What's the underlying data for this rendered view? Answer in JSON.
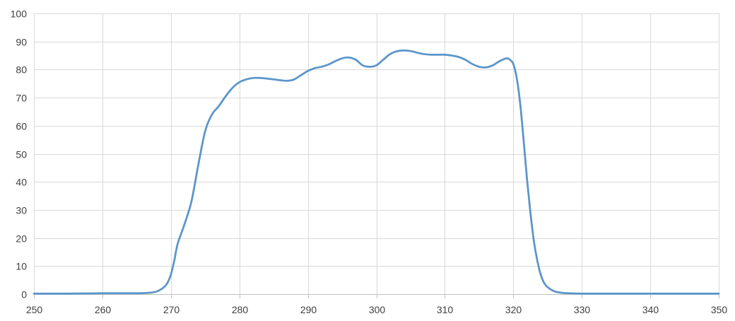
{
  "chart_data": {
    "type": "line",
    "title": "",
    "xlabel": "",
    "ylabel": "",
    "xlim": [
      250,
      350
    ],
    "ylim": [
      0,
      100
    ],
    "x_ticks": [
      250,
      260,
      270,
      280,
      290,
      300,
      310,
      320,
      330,
      340,
      350
    ],
    "y_ticks": [
      0,
      10,
      20,
      30,
      40,
      50,
      60,
      70,
      80,
      90,
      100
    ],
    "grid": true,
    "legend": "none",
    "series": [
      {
        "color": "#5b95c9",
        "x": [
          250,
          255,
          260,
          265,
          267,
          268,
          269,
          269.5,
          270,
          270.5,
          271,
          272,
          273,
          274,
          275,
          276,
          277,
          278,
          279,
          280,
          281,
          282,
          283,
          284,
          285,
          286,
          287,
          288,
          289,
          290,
          291,
          292,
          293,
          294,
          295,
          296,
          297,
          298,
          299,
          300,
          301,
          302,
          303,
          304,
          305,
          306,
          307,
          308,
          309,
          310,
          311,
          312,
          313,
          314,
          315,
          316,
          317,
          318,
          319,
          319.5,
          320,
          320.5,
          321,
          321.5,
          322,
          322.5,
          323,
          323.5,
          324,
          324.5,
          325,
          326,
          327,
          328,
          330,
          335,
          340,
          345,
          350
        ],
        "y": [
          0.2,
          0.2,
          0.3,
          0.3,
          0.5,
          1.0,
          2.5,
          4.0,
          7.0,
          12.0,
          18.0,
          25.0,
          33.0,
          46.0,
          58.0,
          64.0,
          67.0,
          70.5,
          73.5,
          75.5,
          76.5,
          77.0,
          77.0,
          76.8,
          76.5,
          76.2,
          76.0,
          76.5,
          78.0,
          79.5,
          80.5,
          81.0,
          81.8,
          83.0,
          84.0,
          84.3,
          83.5,
          81.5,
          81.0,
          81.5,
          83.5,
          85.5,
          86.5,
          86.8,
          86.6,
          86.0,
          85.5,
          85.3,
          85.3,
          85.3,
          85.0,
          84.5,
          83.5,
          82.0,
          81.0,
          80.8,
          81.5,
          83.0,
          84.0,
          83.5,
          82.0,
          77.0,
          68.0,
          55.0,
          41.0,
          29.0,
          19.0,
          12.0,
          7.0,
          4.0,
          2.5,
          1.0,
          0.5,
          0.3,
          0.2,
          0.2,
          0.2,
          0.2,
          0.2
        ]
      }
    ]
  }
}
